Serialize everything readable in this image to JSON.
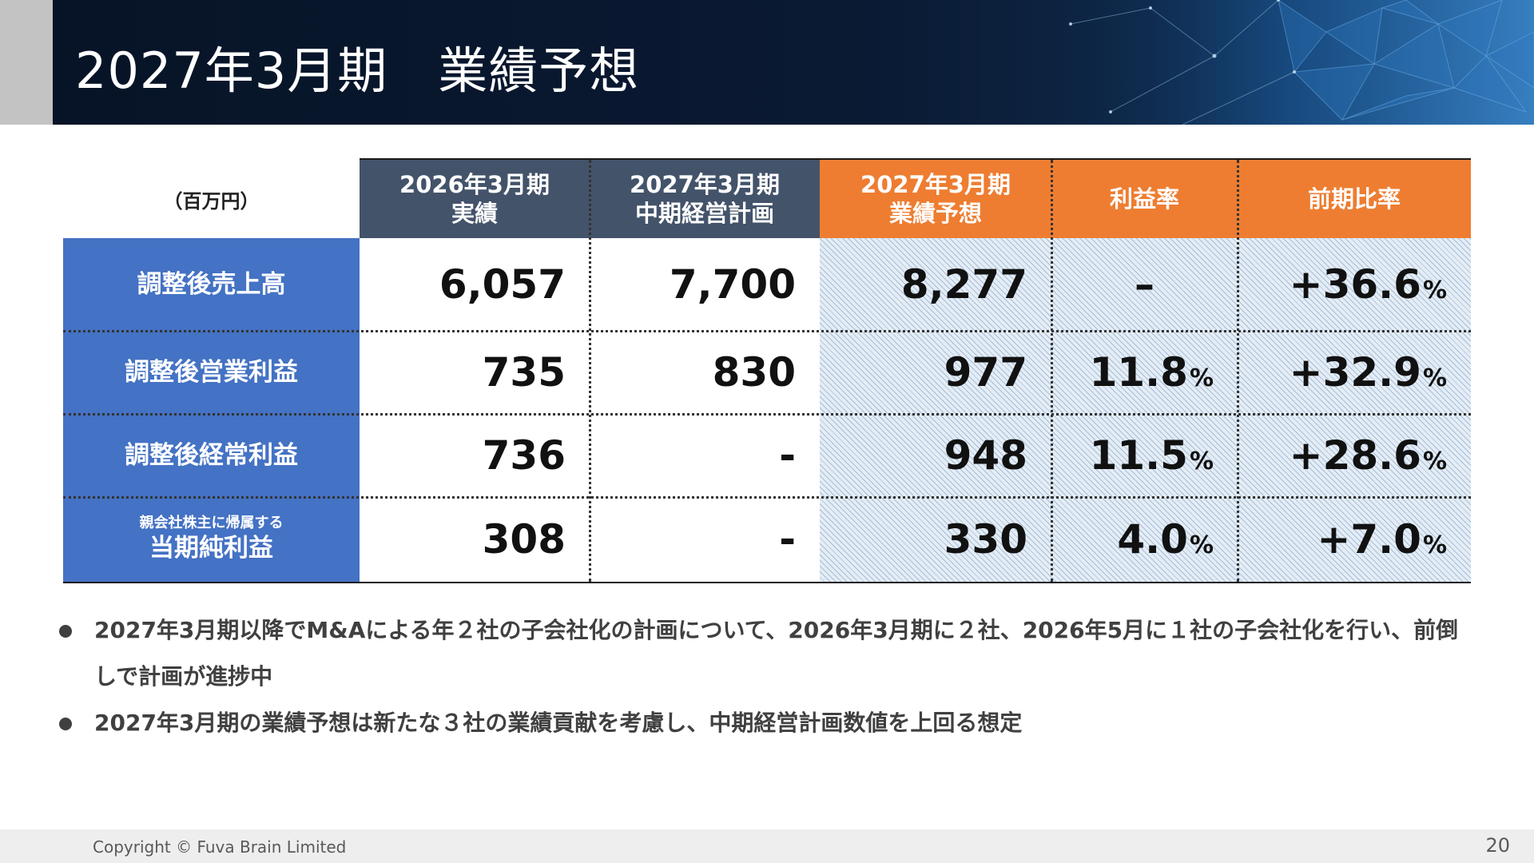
{
  "header": {
    "title": "2027年3月期　業績予想"
  },
  "table": {
    "unit": "（百万円）",
    "columns": [
      {
        "line1": "2026年3月期",
        "line2": "実績"
      },
      {
        "line1": "2027年3月期",
        "line2": "中期経営計画"
      },
      {
        "line1": "2027年3月期",
        "line2": "業績予想"
      },
      {
        "line1": "利益率",
        "line2": ""
      },
      {
        "line1": "前期比率",
        "line2": ""
      }
    ],
    "rows": [
      {
        "sub": "",
        "label": "調整後売上高",
        "actual": "6,057",
        "plan": "7,700",
        "forecast": "8,277",
        "margin": "–",
        "margin_pct": "",
        "yoy": "+36.6",
        "yoy_pct": "%"
      },
      {
        "sub": "",
        "label": "調整後営業利益",
        "actual": "735",
        "plan": "830",
        "forecast": "977",
        "margin": "11.8",
        "margin_pct": "%",
        "yoy": "+32.9",
        "yoy_pct": "%"
      },
      {
        "sub": "",
        "label": "調整後経常利益",
        "actual": "736",
        "plan": "-",
        "forecast": "948",
        "margin": "11.5",
        "margin_pct": "%",
        "yoy": "+28.6",
        "yoy_pct": "%"
      },
      {
        "sub": "親会社株主に帰属する",
        "label": "当期純利益",
        "actual": "308",
        "plan": "-",
        "forecast": "330",
        "margin": "4.0",
        "margin_pct": "%",
        "yoy": "+7.0",
        "yoy_pct": "%"
      }
    ]
  },
  "bullets": [
    "2027年3月期以降でM&Aによる年２社の子会社化の計画について、2026年3月期に２社、2026年5月に１社の子会社化を行い、前倒しで計画が進捗中",
    "2027年3月期の業績予想は新たな３社の業績貢献を考慮し、中期経営計画数値を上回る想定"
  ],
  "footer": {
    "copyright": "Copyright © Fuva Brain Limited",
    "page": "20"
  },
  "colors": {
    "navy": "#071427",
    "header_dark": "#43536a",
    "orange": "#ee7d31",
    "row_blue": "#4472c4",
    "shade": "#e4edf6"
  }
}
